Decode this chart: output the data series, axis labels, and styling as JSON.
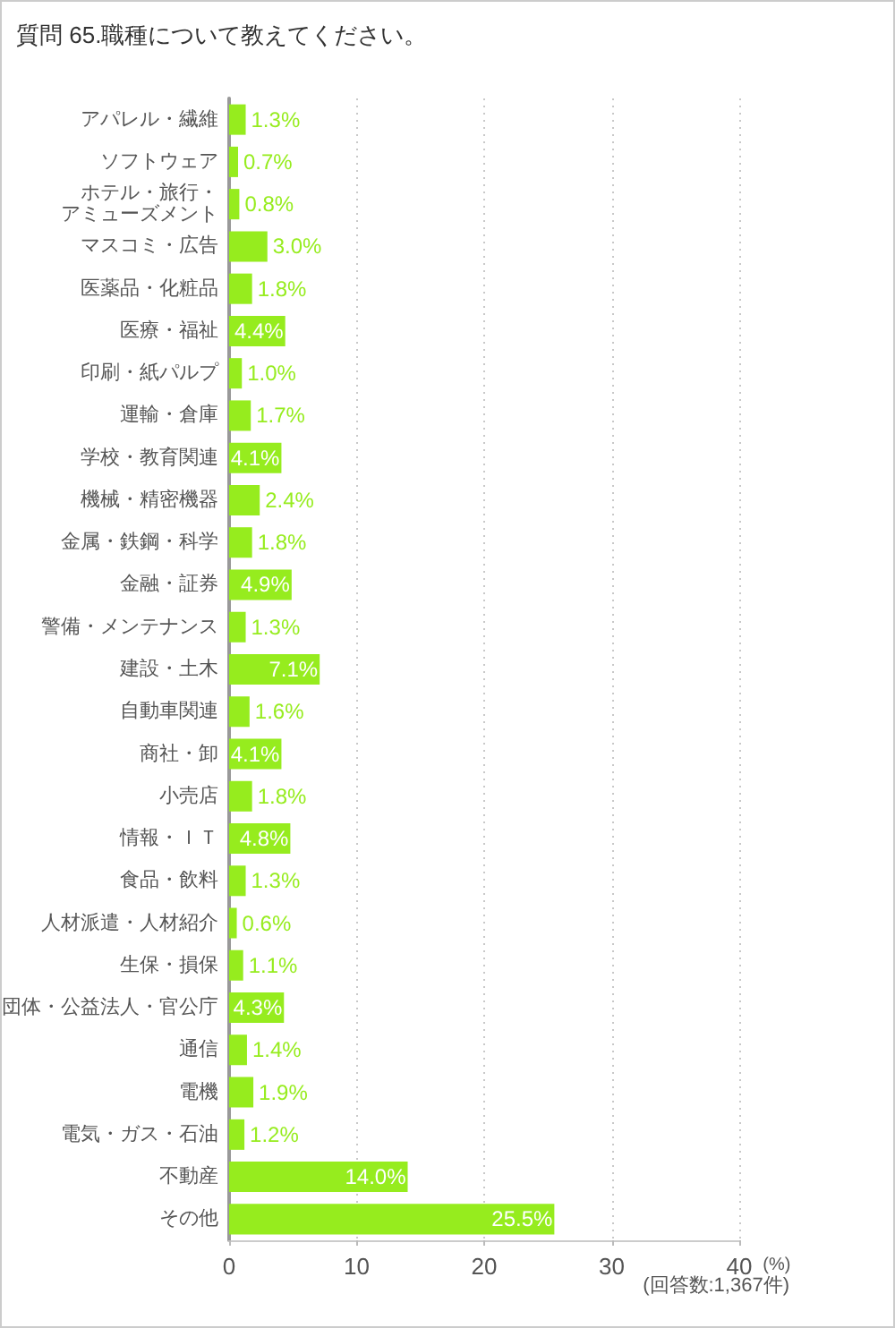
{
  "chart_data": {
    "type": "bar",
    "orientation": "horizontal",
    "title": "質問 65.職種について教えてください。",
    "xlabel": "(%)",
    "annotations": [
      "(回答数:1,367件)"
    ],
    "categories": [
      "アパレル・繊維",
      "ソフトウェア",
      "ホテル・旅行・アミューズメント",
      "マスコミ・広告",
      "医薬品・化粧品",
      "医療・福祉",
      "印刷・紙パルプ",
      "運輸・倉庫",
      "学校・教育関連",
      "機械・精密機器",
      "金属・鉄鋼・科学",
      "金融・証券",
      "警備・メンテナンス",
      "建設・土木",
      "自動車関連",
      "商社・卸",
      "小売店",
      "情報・ＩＴ",
      "食品・飲料",
      "人材派遣・人材紹介",
      "生保・損保",
      "団体・公益法人・官公庁",
      "通信",
      "電機",
      "電気・ガス・石油",
      "不動産",
      "その他"
    ],
    "values": [
      1.3,
      0.7,
      0.8,
      3.0,
      1.8,
      4.4,
      1.0,
      1.7,
      4.1,
      2.4,
      1.8,
      4.9,
      1.3,
      7.1,
      1.6,
      4.1,
      1.8,
      4.8,
      1.3,
      0.6,
      1.1,
      4.3,
      1.4,
      1.9,
      1.2,
      14.0,
      25.5
    ],
    "value_labels": [
      "1.3%",
      "0.7%",
      "0.8%",
      "3.0%",
      "1.8%",
      "4.4%",
      "1.0%",
      "1.7%",
      "4.1%",
      "2.4%",
      "1.8%",
      "4.9%",
      "1.3%",
      "7.1%",
      "1.6%",
      "4.1%",
      "1.8%",
      "4.8%",
      "1.3%",
      "0.6%",
      "1.1%",
      "4.3%",
      "1.4%",
      "1.9%",
      "1.2%",
      "14.0%",
      "25.5%"
    ],
    "color": "#96ec1e",
    "xlim": [
      0,
      40
    ],
    "xticks": [
      0,
      10,
      20,
      30,
      40
    ],
    "grid": "x"
  }
}
